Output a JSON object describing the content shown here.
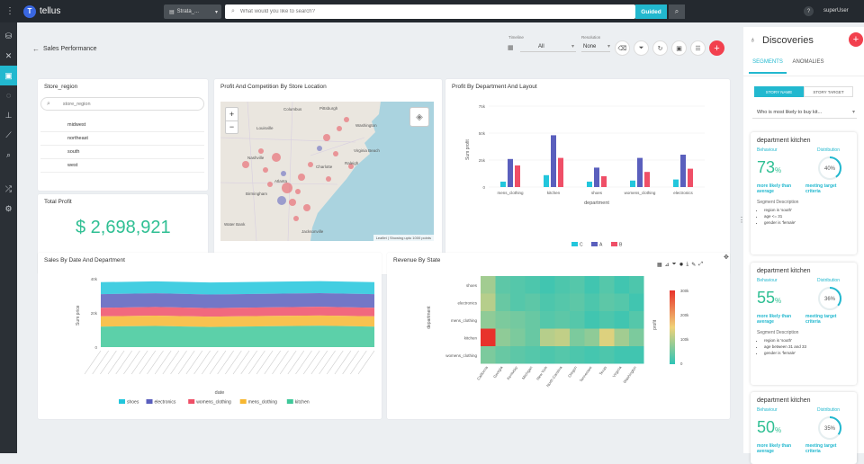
{
  "app": {
    "name": "tellus",
    "user": "superUser",
    "help": "?"
  },
  "search": {
    "dataset": "Strata_...",
    "placeholder": "What would you like to search?",
    "mode": "Guided"
  },
  "page": {
    "title": "Sales Performance",
    "timeline_label": "Timeline",
    "timeline_value": "All",
    "resolution_label": "Resolution",
    "resolution_value": "None"
  },
  "filter_card": {
    "title": "Store_region",
    "placeholder": "store_region",
    "items": [
      "midwest",
      "northeast",
      "south",
      "west"
    ]
  },
  "profit_card": {
    "title": "Total Profit",
    "value": "$ 2,698,921"
  },
  "map_card": {
    "title": "Profit And Competition By Store Location",
    "zoom_in": "+",
    "zoom_out": "−",
    "attribution": "Leaflet | Showing upto 1000 points",
    "cities": [
      "Columbus",
      "Louisville",
      "Nashville",
      "Atlanta",
      "Birmingham",
      "Charlotte",
      "Virginia Beach",
      "Washington",
      "Jacksonville",
      "Pittsburgh",
      "Raleigh",
      "Water Bank"
    ]
  },
  "bar_card": {
    "title": "Profit By Department And Layout"
  },
  "area_card": {
    "title": "Sales By Date And Department"
  },
  "heat_card": {
    "title": "Revenue By State"
  },
  "chart_data": [
    {
      "type": "bar",
      "title": "Profit By Department And Layout",
      "xlabel": "department",
      "ylabel": "Sum profit",
      "categories": [
        "mens_clothing",
        "kitchen",
        "shoes",
        "womens_clothing",
        "electronics"
      ],
      "yticks": [
        "0",
        "25k",
        "50k",
        "75k"
      ],
      "ylim": [
        0,
        75000
      ],
      "series": [
        {
          "name": "C",
          "color": "#22c6dc",
          "values": [
            5000,
            11000,
            5000,
            6000,
            7000
          ]
        },
        {
          "name": "A",
          "color": "#5a5fbd",
          "values": [
            26000,
            48000,
            18000,
            27000,
            30000
          ]
        },
        {
          "name": "B",
          "color": "#ef4f67",
          "values": [
            20000,
            27000,
            10000,
            14000,
            17000
          ]
        }
      ]
    },
    {
      "type": "area",
      "title": "Sales By Date And Department",
      "xlabel": "date",
      "ylabel": "Sum price",
      "yticks": [
        "0",
        "20k",
        "40k"
      ],
      "ylim": [
        0,
        40000
      ],
      "series": [
        {
          "name": "shoes",
          "color": "#22c6dc",
          "values": [
            38000,
            38500,
            37800,
            38200,
            38600,
            38000
          ]
        },
        {
          "name": "electronics",
          "color": "#5a5fbd",
          "values": [
            31000,
            31500,
            30800,
            31200,
            31600,
            31000
          ]
        },
        {
          "name": "womens_clothing",
          "color": "#ef4f67",
          "values": [
            23000,
            23500,
            22800,
            23200,
            23600,
            23000
          ]
        },
        {
          "name": "mens_clothing",
          "color": "#f7b731",
          "values": [
            18000,
            18400,
            17800,
            18200,
            18500,
            18000
          ]
        },
        {
          "name": "kitchen",
          "color": "#3fc89a",
          "values": [
            12000,
            12400,
            11800,
            12200,
            12500,
            12000
          ]
        }
      ]
    },
    {
      "type": "heatmap",
      "title": "Revenue By State",
      "ylabel": "department",
      "colorbar_label": "profit",
      "rows": [
        "shoes",
        "electronics",
        "mens_clothing",
        "kitchen",
        "womens_clothing"
      ],
      "columns": [
        "California",
        "Georgia",
        "Kentucky",
        "Michigan",
        "New York",
        "North Carolina",
        "Oregon",
        "Tennessee",
        "Texas",
        "Virginia",
        "Washington"
      ],
      "colorbar_ticks": [
        "300k",
        "200k",
        "100k",
        "0"
      ],
      "color_min": "#2ec4b6",
      "color_max": "#e8322b"
    }
  ],
  "discoveries": {
    "title": "Discoveries",
    "tab_segments": "SEGMENTS",
    "tab_anomalies": "ANOMALIES",
    "story_name": "STORY NAME",
    "story_target": "STORY TARGET",
    "question": "Who is most likely to buy kit...",
    "behaviour_label": "Behaviour",
    "distribution_label": "Distribution",
    "more_likely": "more likely than average",
    "meeting": "meeting target criteria",
    "segdesc": "Segment Description",
    "cards": [
      {
        "title": "department kitchen",
        "pct": "73",
        "unit": "%",
        "dist": "40%",
        "dist_value": 40,
        "desc": [
          "region is 'south'",
          "age <= 31",
          "gender is 'female'"
        ]
      },
      {
        "title": "department kitchen",
        "pct": "55",
        "unit": "%",
        "dist": "36%",
        "dist_value": 36,
        "desc": [
          "region is 'south'",
          "age between 31 and 33",
          "gender is 'female'"
        ]
      },
      {
        "title": "department kitchen",
        "pct": "50",
        "unit": "%",
        "dist": "35%",
        "dist_value": 35,
        "desc": []
      }
    ]
  }
}
